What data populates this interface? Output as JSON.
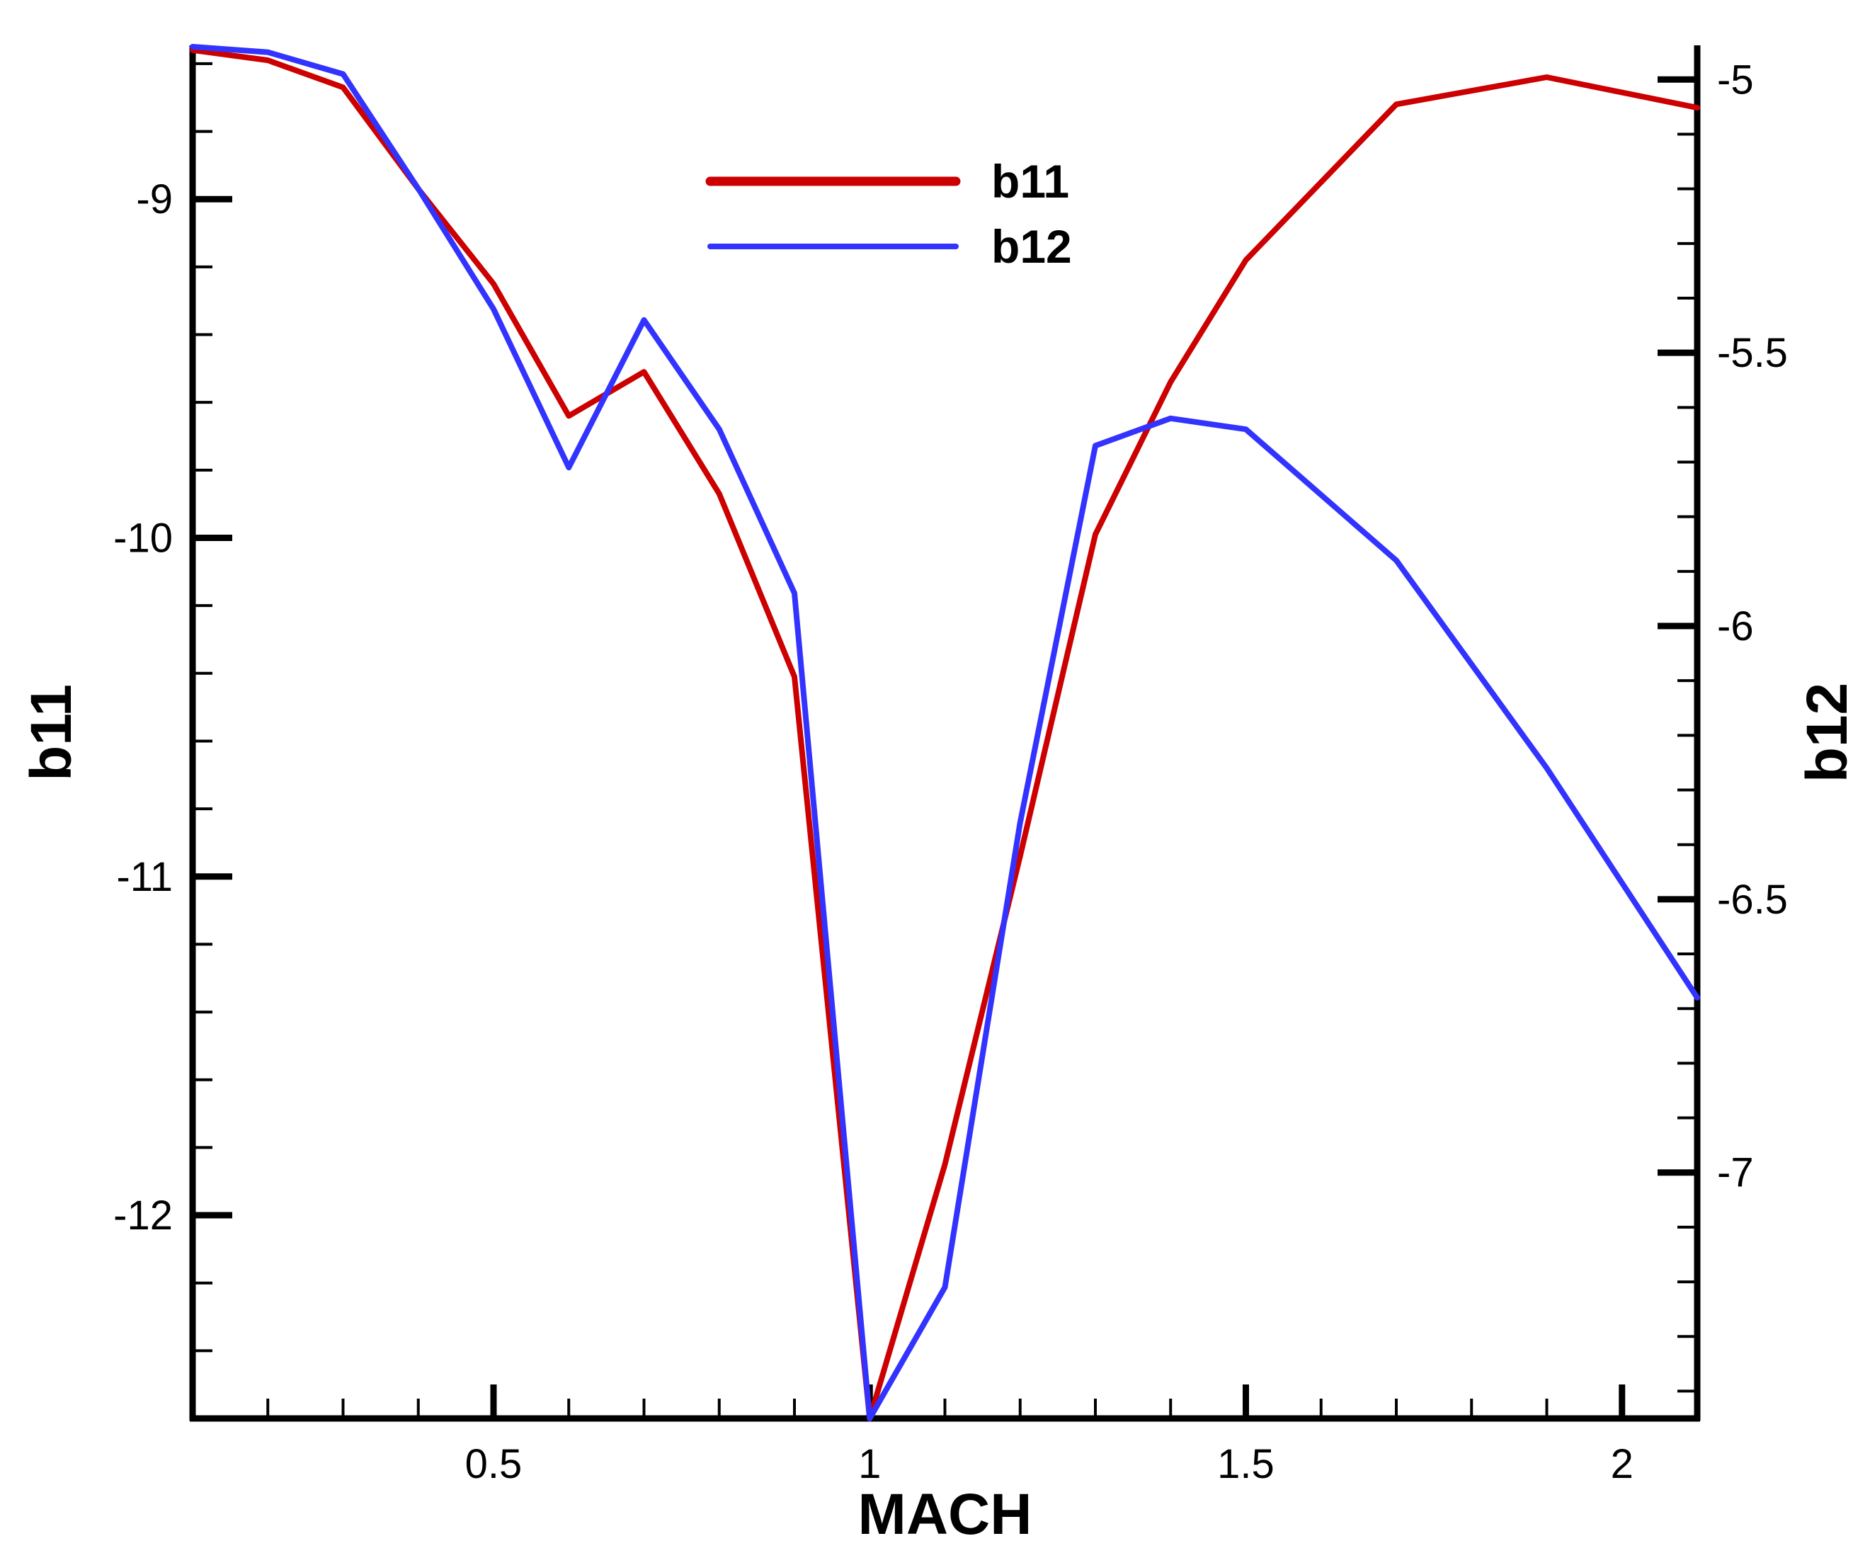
{
  "chart_data": {
    "type": "line",
    "title": "",
    "xlabel": "MACH",
    "ylabel_left": "b11",
    "ylabel_right": "b12",
    "xlim": [
      0.1,
      2.1
    ],
    "ylim_left": [
      -12.6,
      -8.55
    ],
    "ylim_right": [
      -7.45,
      -4.94
    ],
    "grid": false,
    "legend_position": "top-center",
    "x_ticks": [
      0.5,
      1,
      1.5,
      2
    ],
    "x_tick_labels": [
      "0.5",
      "1",
      "1.5",
      "2"
    ],
    "y_left_ticks": [
      -9,
      -10,
      -11,
      -12
    ],
    "y_left_tick_labels": [
      "-9",
      "-10",
      "-11",
      "-12"
    ],
    "y_right_ticks": [
      -5,
      -5.5,
      -6,
      -6.5,
      -7
    ],
    "y_right_tick_labels": [
      "-5",
      "-5.5",
      "-6",
      "-6.5",
      "-7"
    ],
    "series": [
      {
        "name": "b11",
        "axis": "left",
        "color": "#cc0000",
        "x": [
          0.1,
          0.2,
          0.3,
          0.4,
          0.5,
          0.6,
          0.7,
          0.8,
          0.9,
          1.0,
          1.1,
          1.2,
          1.3,
          1.4,
          1.5,
          1.7,
          1.9,
          2.1
        ],
        "y": [
          -8.56,
          -8.59,
          -8.67,
          -8.97,
          -9.25,
          -9.64,
          -9.51,
          -9.87,
          -10.41,
          -12.6,
          -11.85,
          -10.94,
          -9.99,
          -9.54,
          -9.18,
          -8.72,
          -8.64,
          -8.73
        ]
      },
      {
        "name": "b12",
        "axis": "right",
        "color": "#3333ff",
        "x": [
          0.1,
          0.2,
          0.3,
          0.4,
          0.5,
          0.6,
          0.7,
          0.8,
          0.9,
          1.0,
          1.1,
          1.2,
          1.3,
          1.4,
          1.5,
          1.7,
          1.9,
          2.1
        ],
        "y": [
          -4.94,
          -4.95,
          -4.99,
          -5.2,
          -5.42,
          -5.71,
          -5.44,
          -5.64,
          -5.94,
          -7.45,
          -7.21,
          -6.36,
          -5.67,
          -5.62,
          -5.64,
          -5.88,
          -6.26,
          -6.68
        ]
      }
    ]
  }
}
